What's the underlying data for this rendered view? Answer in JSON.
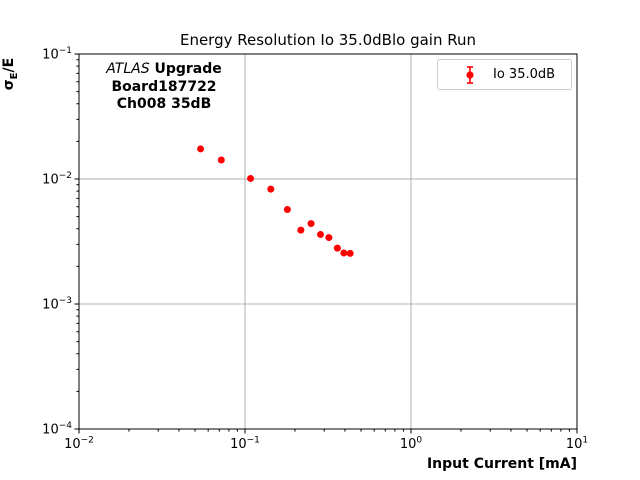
{
  "title": "Energy Resolution Io 35.0dBlo gain Run",
  "x_axis_label": "Input Current [mA]",
  "y_axis_label": {
    "sigma": "σ",
    "subscript": "E",
    "rest": "/E"
  },
  "annotation": {
    "experiment": "ATLAS",
    "program": "Upgrade",
    "board": "Board187722",
    "channel": "Ch008 35dB"
  },
  "legend": {
    "label": "Io 35.0dB",
    "marker_color": "#ff0000"
  },
  "colors": {
    "marker": "#ff0000",
    "grid": "#b0b0b0",
    "spine": "#000000",
    "legend_border": "#cccccc",
    "background": "#ffffff"
  },
  "chart_data": {
    "type": "scatter",
    "title": "Energy Resolution Io 35.0dBlo gain Run",
    "xlabel": "Input Current [mA]",
    "ylabel": "sigma_E / E",
    "xscale": "log",
    "yscale": "log",
    "xlim": [
      0.01,
      10
    ],
    "ylim": [
      0.0001,
      0.1
    ],
    "grid": true,
    "legend_position": "upper right",
    "x_tick_labels": [
      "10⁻²",
      "10⁻¹",
      "10⁰",
      "10¹"
    ],
    "y_tick_labels": [
      "10⁻¹",
      "10⁻²",
      "10⁻³",
      "10⁻⁴"
    ],
    "series": [
      {
        "name": "Io 35.0dB",
        "color": "#ff0000",
        "marker": "circle-with-errorbar",
        "x": [
          0.054,
          0.072,
          0.108,
          0.143,
          0.18,
          0.217,
          0.25,
          0.285,
          0.32,
          0.36,
          0.394,
          0.43
        ],
        "y": [
          0.0174,
          0.0142,
          0.0101,
          0.0083,
          0.0057,
          0.0039,
          0.0044,
          0.0036,
          0.0034,
          0.0028,
          0.00256,
          0.00254
        ]
      }
    ]
  }
}
